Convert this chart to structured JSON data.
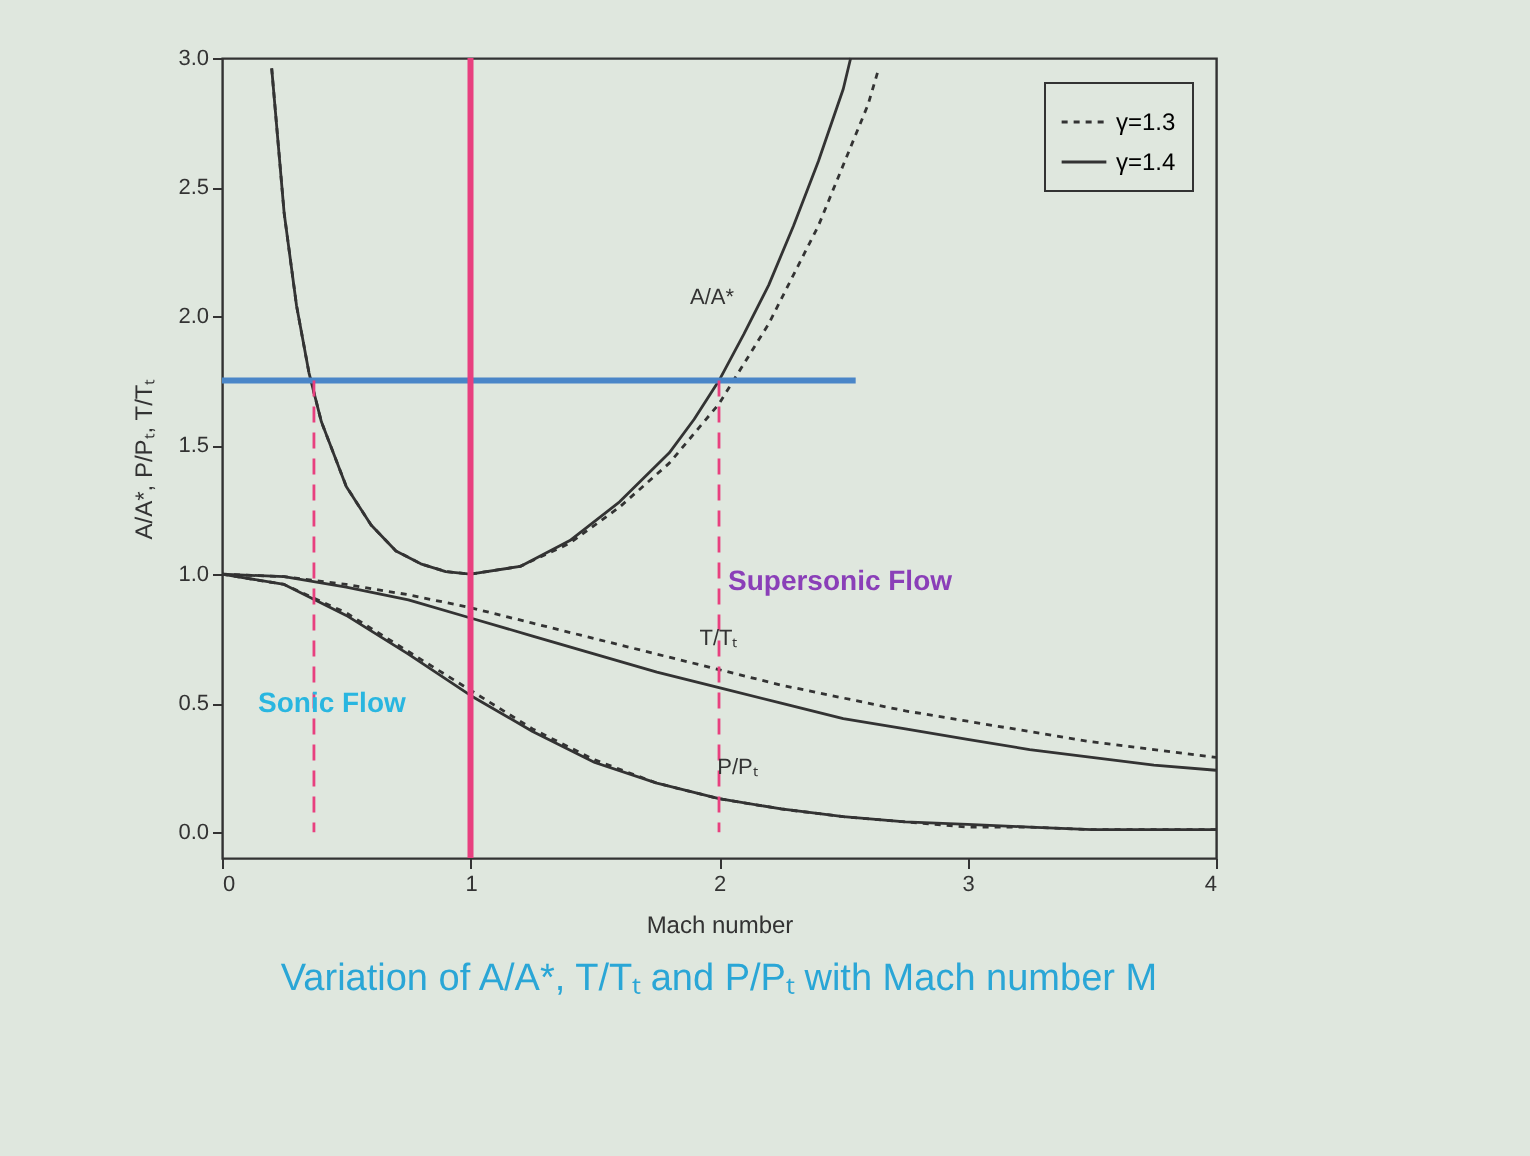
{
  "chart_data": {
    "type": "line",
    "title": "Variation of A/A*, T/Tₜ and P/Pₜ with Mach number M",
    "xlabel": "Mach number",
    "ylabel": "A/A*, P/Pₜ, T/Tₜ",
    "xlim": [
      0,
      4
    ],
    "xticks": [
      0,
      1,
      2,
      3,
      4
    ],
    "ylim": [
      -0.1,
      3.0
    ],
    "yticks": [
      {
        "value": 0,
        "label": "0.0"
      },
      {
        "value": 0.5,
        "label": "0.5"
      },
      {
        "value": 1,
        "label": "1.0"
      },
      {
        "value": 1.5,
        "label": "1.5"
      },
      {
        "value": 2,
        "label": "2.0"
      },
      {
        "value": 2.5,
        "label": "2.5"
      },
      {
        "value": 3,
        "label": "3.0"
      }
    ],
    "legend": "top right",
    "grid": false,
    "series": [
      {
        "name": "γ=1.3",
        "color": "#333333",
        "line_style": "dotted",
        "x": [
          0.2,
          0.25,
          0.3,
          0.35,
          0.4,
          0.5,
          0.6,
          0.7,
          0.8,
          0.9,
          1.0,
          1.2,
          1.4,
          1.6,
          1.8,
          2.0,
          2.2,
          2.4,
          2.6,
          2.64
        ],
        "values": [
          2.96,
          2.4,
          2.04,
          1.78,
          1.59,
          1.34,
          1.19,
          1.09,
          1.04,
          1.01,
          1.0,
          1.03,
          1.12,
          1.26,
          1.43,
          1.66,
          1.97,
          2.35,
          2.82,
          2.95
        ]
      },
      {
        "name": "γ=1.4",
        "color": "#333333",
        "line_style": "solid",
        "x": [
          0.2,
          0.25,
          0.3,
          0.35,
          0.4,
          0.5,
          0.6,
          0.7,
          0.8,
          0.9,
          1.0,
          1.2,
          1.4,
          1.6,
          1.8,
          1.9,
          2.0,
          2.1,
          2.2,
          2.3,
          2.4,
          2.5,
          2.53
        ],
        "values": [
          2.96,
          2.4,
          2.04,
          1.78,
          1.59,
          1.34,
          1.19,
          1.09,
          1.04,
          1.01,
          1.0,
          1.03,
          1.13,
          1.28,
          1.47,
          1.6,
          1.75,
          1.93,
          2.12,
          2.35,
          2.6,
          2.88,
          3.0
        ]
      },
      {
        "color": "#333333",
        "line_style": "dotted",
        "x": [
          0,
          0.25,
          0.5,
          0.75,
          1,
          1.25,
          1.5,
          1.75,
          2,
          2.25,
          2.5,
          2.75,
          3,
          3.25,
          3.5,
          3.75,
          4
        ],
        "values": [
          1,
          0.99,
          0.96,
          0.92,
          0.87,
          0.81,
          0.75,
          0.69,
          0.63,
          0.57,
          0.52,
          0.47,
          0.43,
          0.39,
          0.35,
          0.32,
          0.29
        ]
      },
      {
        "color": "#333333",
        "line_style": "solid",
        "x": [
          0,
          0.25,
          0.5,
          0.75,
          1,
          1.25,
          1.5,
          1.75,
          2,
          2.25,
          2.5,
          2.75,
          3,
          3.25,
          3.5,
          3.75,
          4
        ],
        "values": [
          1,
          0.99,
          0.95,
          0.9,
          0.83,
          0.76,
          0.69,
          0.62,
          0.56,
          0.5,
          0.44,
          0.4,
          0.36,
          0.32,
          0.29,
          0.26,
          0.24
        ]
      },
      {
        "color": "#333333",
        "line_style": "dotted",
        "x": [
          0,
          0.25,
          0.5,
          0.75,
          1,
          1.25,
          1.5,
          1.75,
          2,
          2.25,
          2.5,
          2.75,
          3,
          3.25,
          3.5,
          3.75,
          4
        ],
        "values": [
          1,
          0.96,
          0.85,
          0.7,
          0.55,
          0.4,
          0.28,
          0.19,
          0.13,
          0.09,
          0.06,
          0.04,
          0.02,
          0.02,
          0.01,
          0.01,
          0.01
        ]
      },
      {
        "color": "#333333",
        "line_style": "solid",
        "x": [
          0,
          0.25,
          0.5,
          0.75,
          1,
          1.25,
          1.5,
          1.75,
          2,
          2.25,
          2.5,
          2.75,
          3,
          3.25,
          3.5,
          3.75,
          4
        ],
        "values": [
          1,
          0.96,
          0.84,
          0.69,
          0.53,
          0.39,
          0.27,
          0.19,
          0.13,
          0.09,
          0.06,
          0.04,
          0.03,
          0.02,
          0.01,
          0.01,
          0.01
        ]
      },
      {
        "color": "#4a86c8",
        "line_style": "solid",
        "x": [
          0,
          2.55
        ],
        "values": [
          1.75,
          1.75
        ]
      },
      {
        "color": "#e8407f",
        "line_style": "dashed",
        "x": [
          0.37,
          0.37
        ],
        "values": [
          1.75,
          0
        ]
      },
      {
        "color": "#e8407f",
        "line_style": "dashed",
        "x": [
          2.0,
          2.0
        ],
        "values": [
          1.75,
          0
        ]
      }
    ],
    "ref_lines": [
      {
        "axis": "x",
        "value": 1,
        "color": "#e8407f"
      }
    ],
    "annotations": [
      "A/A*",
      {
        "text": "T/Tₜ",
        "x": 2.0,
        "y": 0.75
      },
      "P/Pₜ",
      "Sonic Flow",
      "Supersonic Flow"
    ]
  }
}
